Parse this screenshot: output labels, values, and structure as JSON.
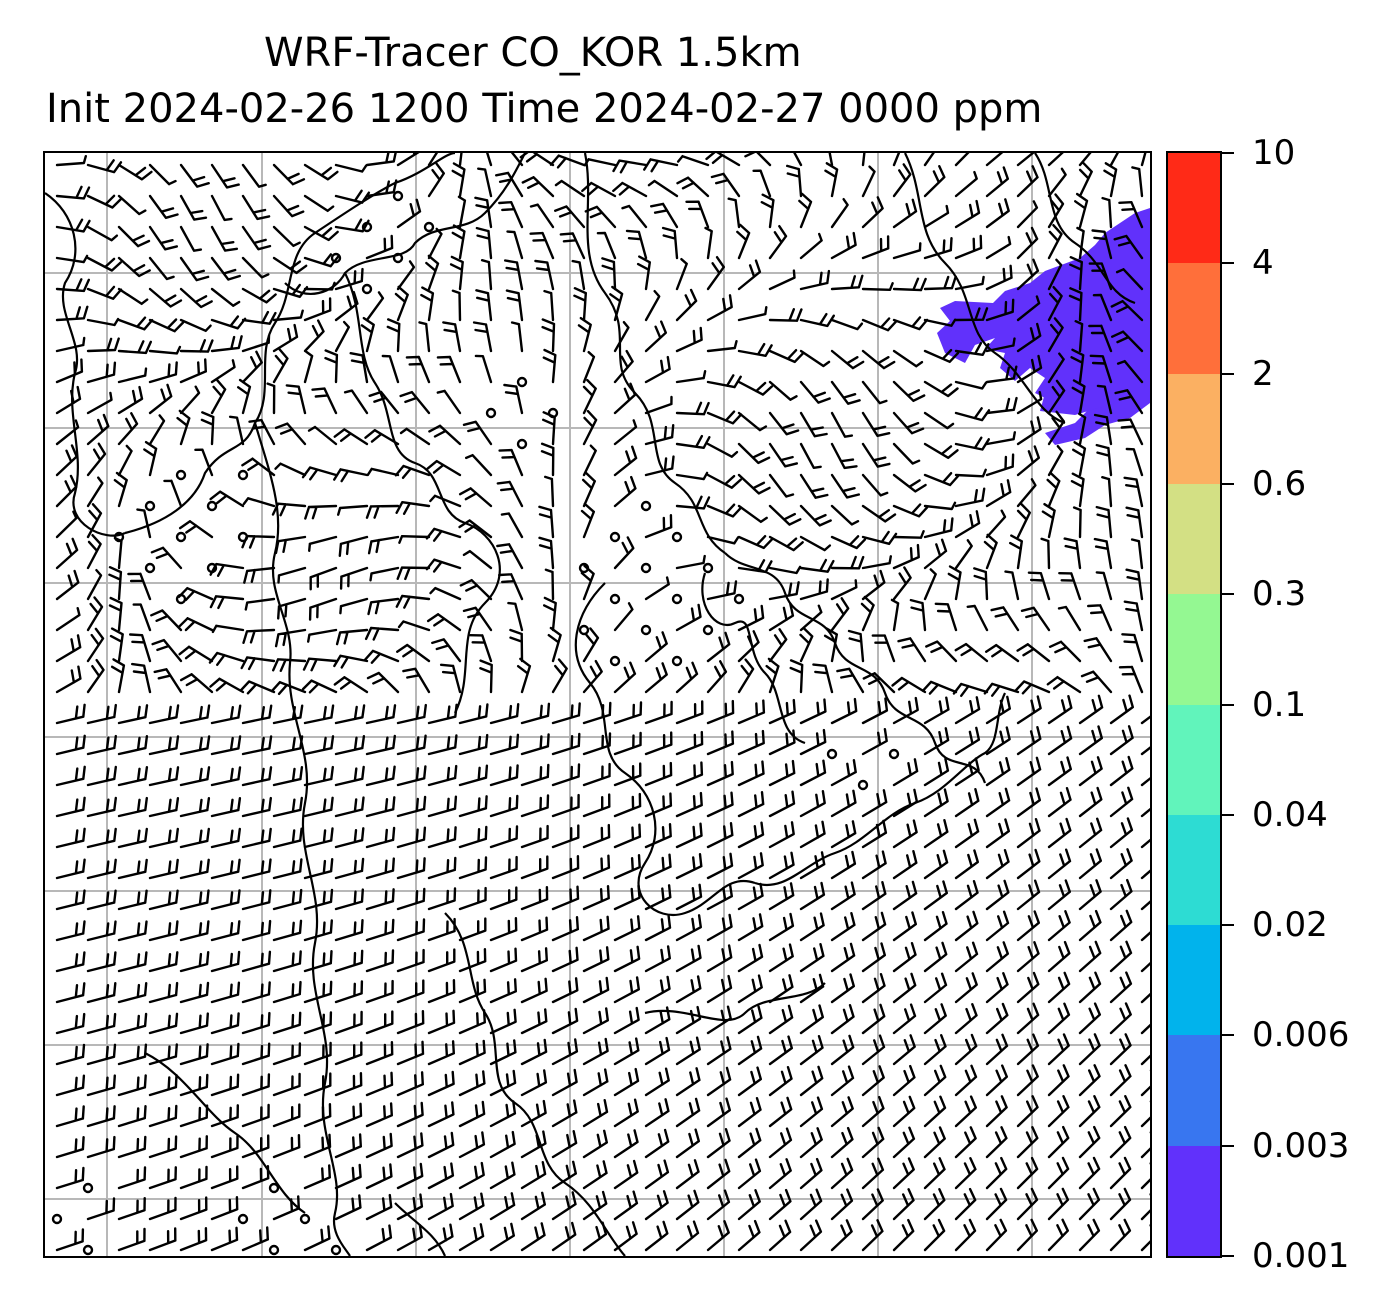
{
  "title": {
    "line1": "WRF-Tracer CO_KOR 1.5km",
    "line2": "Init 2024-02-26 1200 Time 2024-02-27 0000 ppm"
  },
  "colorbar": {
    "levels": [
      "0.001",
      "0.003",
      "0.006",
      "0.02",
      "0.04",
      "0.1",
      "0.3",
      "0.6",
      "2",
      "4",
      "10"
    ],
    "colors": [
      "#6131fb",
      "#3876f0",
      "#01b3ec",
      "#2ddcd3",
      "#61f4bb",
      "#94f892",
      "#d3e084",
      "#fbb062",
      "#ff6f3a",
      "#ff2a17"
    ]
  },
  "map": {
    "grid_color": "#b8b8b8",
    "plume_color": "#6131fb",
    "coast_color": "#000000"
  }
}
